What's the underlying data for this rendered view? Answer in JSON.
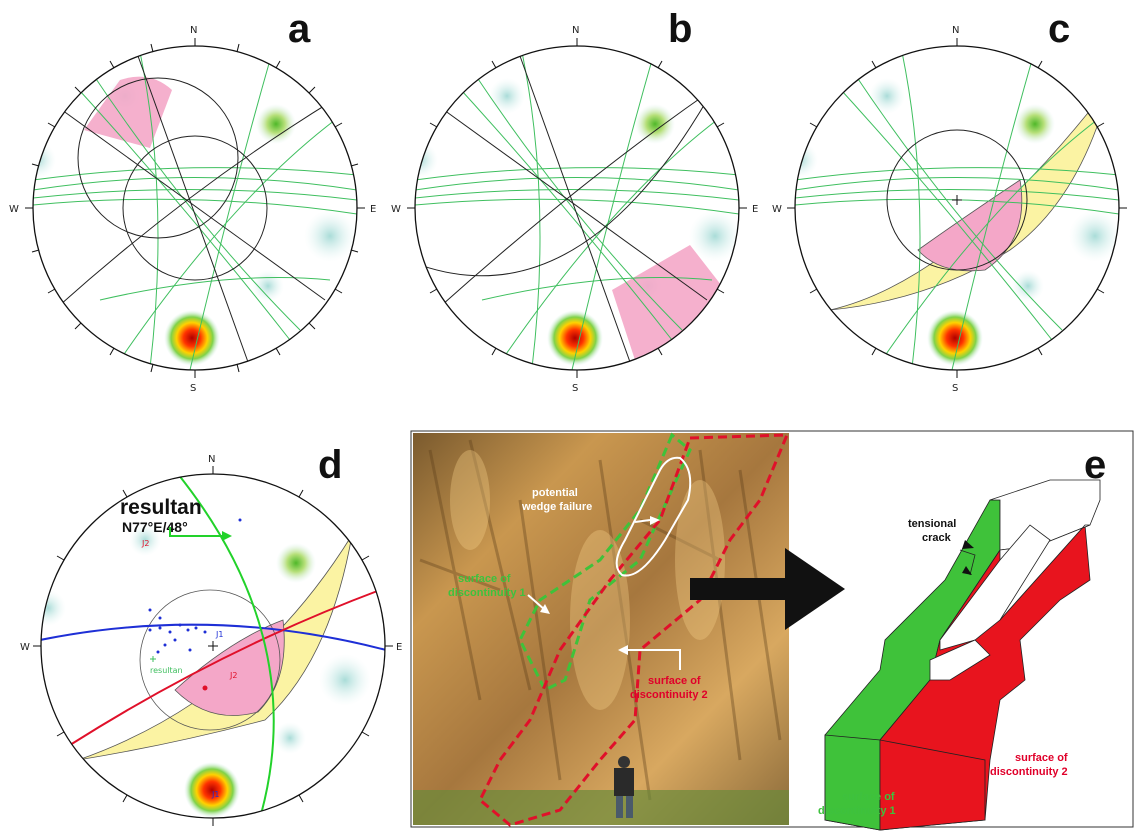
{
  "panels": {
    "a": {
      "letter": "a"
    },
    "b": {
      "letter": "b"
    },
    "c": {
      "letter": "c"
    },
    "d": {
      "letter": "d"
    },
    "e": {
      "letter": "e"
    }
  },
  "directions": {
    "n": "N",
    "s": "S",
    "e": "E",
    "w": "W"
  },
  "panel_d": {
    "resultant_title": "resultan",
    "resultant_value": "N77°E/48°",
    "resultant_small": "resultan",
    "j1": "J1",
    "j2": "J2"
  },
  "photo": {
    "potential_wedge": [
      "potential",
      "wedge failure"
    ],
    "surface1": [
      "surface of",
      "discontinuity 1"
    ],
    "surface2": [
      "surface of",
      "discontinuity 2"
    ]
  },
  "block": {
    "tensional_crack": [
      "tensional",
      "crack"
    ],
    "surface1": [
      "surface of",
      "discontinuity 1"
    ],
    "surface2": [
      "surface of",
      "discontinuity 2"
    ]
  },
  "colors": {
    "great_circle_green": "#3fbf5f",
    "great_circle_black": "#222222",
    "wedge_pink": "#f4a7c8",
    "wedge_yellow": "#fbf3a3",
    "j1_blue": "#1e2fd6",
    "j2_red": "#e0102a",
    "resultant_green": "#22d22a",
    "plane1_green": "#3fc23a",
    "plane2_red": "#e8141e"
  }
}
